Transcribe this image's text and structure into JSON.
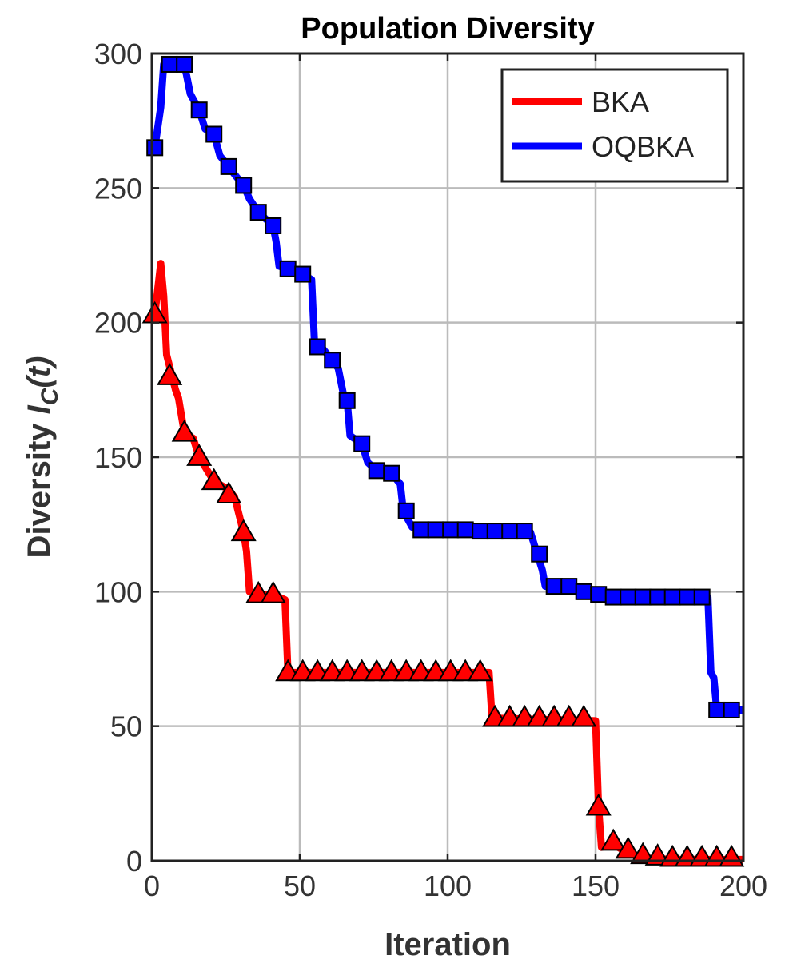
{
  "chart_data": {
    "type": "line",
    "title": "Population Diversity",
    "xlabel": "Iteration",
    "ylabel": {
      "text": "Diversity",
      "symbol": "I",
      "subscript": "C",
      "argument": "(t)"
    },
    "xlim": [
      0,
      200
    ],
    "xticks": [
      0,
      50,
      100,
      150,
      200
    ],
    "ylim": [
      0,
      300
    ],
    "yticks": [
      0,
      50,
      100,
      150,
      200,
      250,
      300
    ],
    "grid": true,
    "legend": "upper right",
    "series": [
      {
        "name": "BKA",
        "color": "#ff0000",
        "marker": "triangle",
        "x": [
          1,
          3,
          4,
          5,
          8,
          9,
          11,
          14,
          16,
          21,
          26,
          28,
          31,
          32,
          33,
          36,
          41,
          45,
          46,
          114,
          115,
          150,
          151,
          152,
          156,
          161,
          166,
          176,
          200
        ],
        "values": [
          203,
          222,
          210,
          188,
          175,
          172,
          159,
          157,
          150,
          141,
          138,
          135,
          122,
          115,
          100,
          99,
          99,
          97,
          70,
          70,
          53,
          52,
          20,
          5,
          6,
          3,
          1,
          0.5,
          0.5
        ],
        "markers": {
          "x": [
            1,
            6,
            11,
            16,
            21,
            26,
            31,
            36,
            41,
            46,
            51,
            56,
            61,
            66,
            71,
            76,
            81,
            86,
            91,
            96,
            101,
            106,
            111,
            116,
            121,
            126,
            131,
            136,
            141,
            146,
            151,
            156,
            161,
            166,
            171,
            176,
            181,
            186,
            191,
            196
          ],
          "values": [
            203,
            180,
            159,
            150,
            141,
            136,
            122,
            99,
            99,
            70,
            70,
            70,
            70,
            70,
            70,
            70,
            70,
            70,
            70,
            70,
            70,
            70,
            70,
            53,
            53,
            53,
            53,
            53,
            53,
            53,
            20,
            7,
            4,
            2,
            1.5,
            1,
            1,
            1,
            1,
            1
          ]
        }
      },
      {
        "name": "OQBKA",
        "color": "#0000ff",
        "marker": "square",
        "x": [
          1,
          3,
          4,
          11,
          13,
          16,
          18,
          21,
          23,
          26,
          28,
          31,
          33,
          36,
          41,
          42,
          43,
          46,
          51,
          54,
          55,
          58,
          61,
          63,
          65,
          66,
          67,
          71,
          73,
          76,
          81,
          84,
          85,
          88,
          91,
          128,
          130,
          132,
          133,
          141,
          144,
          146,
          151,
          156,
          188,
          189,
          190,
          191,
          200
        ],
        "values": [
          265,
          280,
          296,
          296,
          285,
          279,
          272,
          270,
          262,
          258,
          255,
          251,
          246,
          241,
          236,
          230,
          221,
          220,
          218,
          216,
          192,
          190,
          186,
          183,
          172,
          171,
          158,
          155,
          148,
          145,
          144,
          140,
          130,
          124,
          123,
          122,
          115,
          108,
          102,
          102,
          100,
          100,
          99,
          98,
          98,
          70,
          68,
          56,
          56
        ],
        "markers": {
          "x": [
            1,
            6,
            11,
            16,
            21,
            26,
            31,
            36,
            41,
            46,
            51,
            56,
            61,
            66,
            71,
            76,
            81,
            86,
            91,
            96,
            101,
            106,
            111,
            116,
            121,
            126,
            131,
            136,
            141,
            146,
            151,
            156,
            161,
            166,
            171,
            176,
            181,
            186,
            191,
            196
          ],
          "values": [
            265,
            296,
            296,
            279,
            270,
            258,
            251,
            241,
            236,
            220,
            218,
            191,
            186,
            171,
            155,
            145,
            144,
            130,
            123,
            123,
            123,
            123,
            122.5,
            122.5,
            122.5,
            122.5,
            114,
            102,
            102,
            100,
            99,
            98,
            98,
            98,
            98,
            98,
            98,
            98,
            56,
            56
          ]
        }
      }
    ]
  }
}
